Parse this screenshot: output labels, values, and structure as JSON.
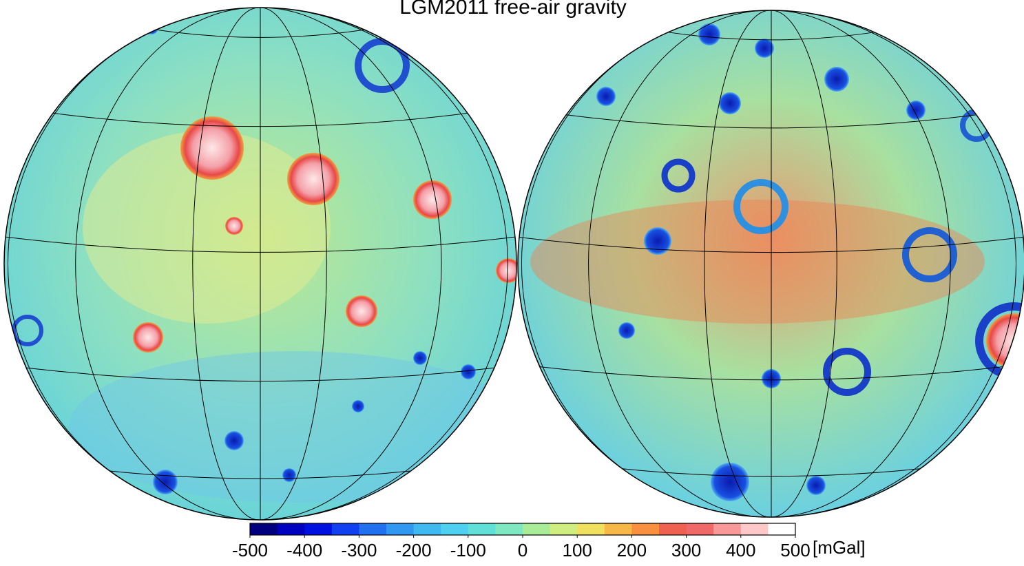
{
  "title": "LGM2011 free-air gravity",
  "colorbar": {
    "vlim": [
      -500,
      500
    ],
    "ticks": [
      -500,
      -400,
      -300,
      -200,
      -100,
      0,
      100,
      200,
      300,
      400,
      500
    ],
    "unit": "[mGal]",
    "colors": [
      "#00007f",
      "#0000c0",
      "#0010e0",
      "#1040f0",
      "#2070f0",
      "#3098f0",
      "#40b8f0",
      "#50d0f0",
      "#60e0d8",
      "#80e8c0",
      "#a8ec98",
      "#d0ee80",
      "#f0e060",
      "#f8b848",
      "#f89040",
      "#f06050",
      "#f06868",
      "#f89898",
      "#fcc8c8",
      "#ffffff"
    ]
  }
}
